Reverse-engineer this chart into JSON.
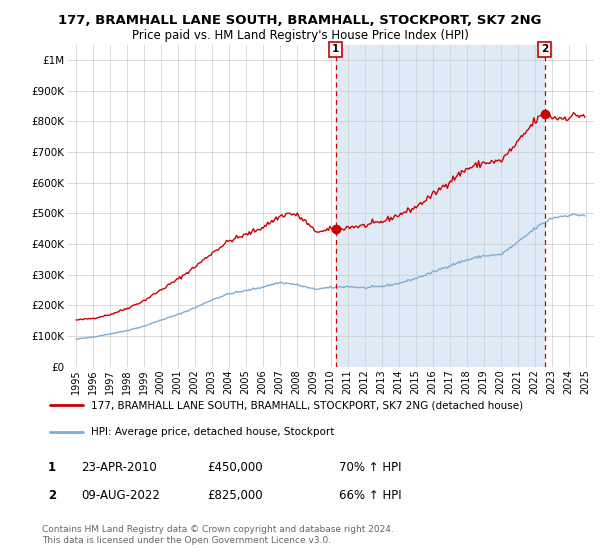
{
  "title": "177, BRAMHALL LANE SOUTH, BRAMHALL, STOCKPORT, SK7 2NG",
  "subtitle": "Price paid vs. HM Land Registry's House Price Index (HPI)",
  "legend_line1": "177, BRAMHALL LANE SOUTH, BRAMHALL, STOCKPORT, SK7 2NG (detached house)",
  "legend_line2": "HPI: Average price, detached house, Stockport",
  "footer": "Contains HM Land Registry data © Crown copyright and database right 2024.\nThis data is licensed under the Open Government Licence v3.0.",
  "annotation1": {
    "num": "1",
    "date": "23-APR-2010",
    "price": "£450,000",
    "hpi": "70% ↑ HPI"
  },
  "annotation2": {
    "num": "2",
    "date": "09-AUG-2022",
    "price": "£825,000",
    "hpi": "66% ↑ HPI"
  },
  "ylim": [
    0,
    1050000
  ],
  "yticks": [
    0,
    100000,
    200000,
    300000,
    400000,
    500000,
    600000,
    700000,
    800000,
    900000,
    1000000
  ],
  "ytick_labels": [
    "£0",
    "£100K",
    "£200K",
    "£300K",
    "£400K",
    "£500K",
    "£600K",
    "£700K",
    "£800K",
    "£900K",
    "£1M"
  ],
  "red_color": "#cc0000",
  "blue_color": "#7dadd4",
  "shade_color": "#deeaf5",
  "vline1_x": 2010.3,
  "vline2_x": 2022.6,
  "marker1_y": 450000,
  "marker2_y": 825000,
  "xlim": [
    1994.5,
    2025.5
  ],
  "xticks": [
    1995,
    1996,
    1997,
    1998,
    1999,
    2000,
    2001,
    2002,
    2003,
    2004,
    2005,
    2006,
    2007,
    2008,
    2009,
    2010,
    2011,
    2012,
    2013,
    2014,
    2015,
    2016,
    2017,
    2018,
    2019,
    2020,
    2021,
    2022,
    2023,
    2024,
    2025
  ],
  "title_fontsize": 9.5,
  "subtitle_fontsize": 8.5
}
